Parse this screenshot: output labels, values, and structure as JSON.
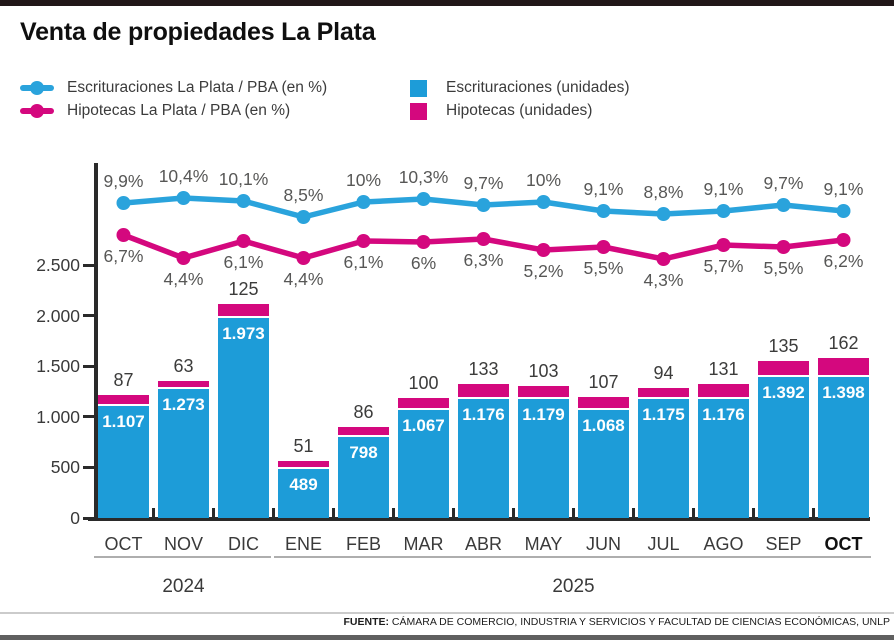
{
  "title": "Venta de propiedades La Plata",
  "legend": {
    "line_series": [
      {
        "label": "Escrituraciones La Plata / PBA (en %)",
        "color": "#2aa3dc"
      },
      {
        "label": "Hipotecas La Plata / PBA (en %)",
        "color": "#d4087e"
      }
    ],
    "bar_series": [
      {
        "label": "Escrituraciones (unidades)",
        "color": "#1d9cd8"
      },
      {
        "label": "Hipotecas (unidades)",
        "color": "#d4087e"
      }
    ]
  },
  "colors": {
    "escrituraciones": "#1d9cd8",
    "hipotecas": "#d4087e",
    "axis": "#2a2a2a",
    "label_gray": "#575756"
  },
  "chart_data": {
    "type": "combo-stacked-bar-line",
    "title": "Venta de propiedades La Plata",
    "categories": [
      "OCT",
      "NOV",
      "DIC",
      "ENE",
      "FEB",
      "MAR",
      "ABR",
      "MAY",
      "JUN",
      "JUL",
      "AGO",
      "SEP",
      "OCT"
    ],
    "year_groups": [
      {
        "label": "2024",
        "from": 0,
        "to": 2
      },
      {
        "label": "2025",
        "from": 3,
        "to": 12
      }
    ],
    "y_axis": {
      "ticks": [
        0,
        500,
        1000,
        1500,
        2000,
        2500
      ],
      "tick_labels": [
        "0",
        "500",
        "1.000",
        "1.500",
        "2.000",
        "2.500"
      ],
      "max": 2500,
      "grid": false
    },
    "series": [
      {
        "name": "Escrituraciones (unidades)",
        "type": "bar",
        "color": "#1d9cd8",
        "values": [
          1107,
          1273,
          1973,
          489,
          798,
          1067,
          1176,
          1179,
          1068,
          1175,
          1176,
          1392,
          1398
        ],
        "labels": [
          "1.107",
          "1.273",
          "1.973",
          "489",
          "798",
          "1.067",
          "1.176",
          "1.179",
          "1.068",
          "1.175",
          "1.176",
          "1.392",
          "1.398"
        ]
      },
      {
        "name": "Hipotecas (unidades)",
        "type": "bar",
        "color": "#d4087e",
        "values": [
          87,
          63,
          125,
          51,
          86,
          100,
          133,
          103,
          107,
          94,
          131,
          135,
          162
        ],
        "labels": [
          "87",
          "63",
          "125",
          "51",
          "86",
          "100",
          "133",
          "103",
          "107",
          "94",
          "131",
          "135",
          "162"
        ]
      },
      {
        "name": "Escrituraciones La Plata / PBA (en %)",
        "type": "line",
        "color": "#2aa3dc",
        "values": [
          9.9,
          10.4,
          10.1,
          8.5,
          10,
          10.3,
          9.7,
          10,
          9.1,
          8.8,
          9.1,
          9.7,
          9.1
        ],
        "labels": [
          "9,9%",
          "10,4%",
          "10,1%",
          "8,5%",
          "10%",
          "10,3%",
          "9,7%",
          "10%",
          "9,1%",
          "8,8%",
          "9,1%",
          "9,7%",
          "9,1%"
        ]
      },
      {
        "name": "Hipotecas La Plata / PBA (en %)",
        "type": "line",
        "color": "#d4087e",
        "values": [
          6.7,
          4.4,
          6.1,
          4.4,
          6.1,
          6,
          6.3,
          5.2,
          5.5,
          4.3,
          5.7,
          5.5,
          6.2
        ],
        "labels": [
          "6,7%",
          "4,4%",
          "6,1%",
          "4,4%",
          "6,1%",
          "6%",
          "6,3%",
          "5,2%",
          "5,5%",
          "4,3%",
          "5,7%",
          "5,5%",
          "6,2%"
        ]
      }
    ]
  },
  "footer": {
    "source_label": "FUENTE:",
    "source_text": "CÁMARA DE COMERCIO, INDUSTRIA Y SERVICIOS Y FACULTAD DE CIENCIAS ECONÓMICAS, UNLP"
  }
}
